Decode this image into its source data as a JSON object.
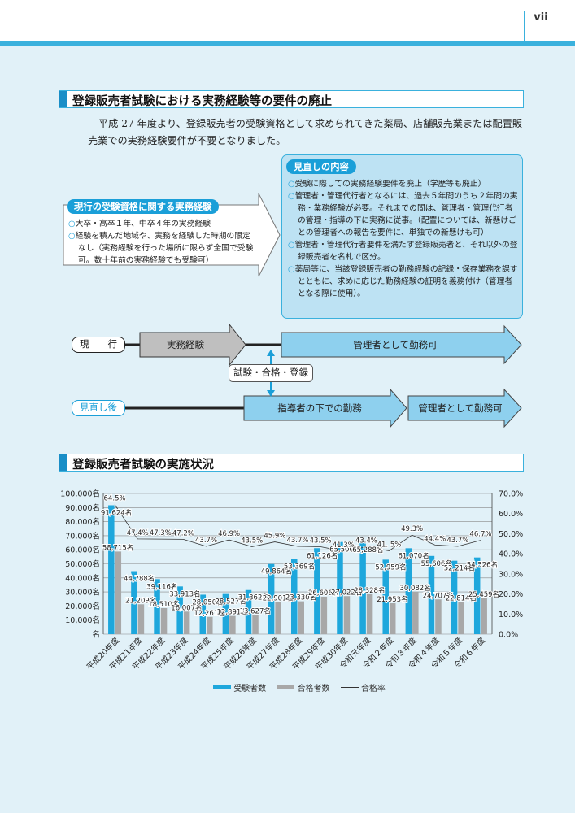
{
  "page_number": "vii",
  "section1": {
    "title": "登録販売者試験における実務経験等の要件の廃止",
    "paragraph": "平成 27 年度より、登録販売者の受験資格として求められてきた薬局、店舗販売業または配置販売業での実務経験要件が不要となりました。"
  },
  "current_box": {
    "title": "現行の受験資格に関する実務経験",
    "items": [
      "大卒・高卒１年、中卒４年の実務経験",
      "経験を積んだ地域や、実務を経験した時期の限定なし（実務経験を行った場所に限らず全国で受験可。数十年前の実務経験でも受験可）"
    ]
  },
  "review_box": {
    "title": "見直しの内容",
    "items": [
      "受験に際しての実務経験要件を廃止（学歴等も廃止）",
      "管理者・管理代行者となるには、過去５年間のうち２年間の実務・業務経験が必要。それまでの間は、管理者・管理代行者の管理・指導の下に実務に従事。（配置については、新懸けごとの管理者への報告を要件に、単独での新懸けも可）",
      "管理者・管理代行者要件を満たす登録販売者と、それ以外の登録販売者を名札で区分。",
      "薬局等に、当該登録販売者の勤務経験の記録・保存業務を課すとともに、求めに応じた勤務経験の証明を義務付け（管理者となる際に使用）。"
    ]
  },
  "flow": {
    "current_label": "現　　行",
    "after_label": "見直し後",
    "work_experience": "実務経験",
    "manager_ok": "管理者として勤務可",
    "exam": "試験・合格・登録",
    "under_supervisor": "指導者の下での勤務",
    "manager_ok2": "管理者として勤務可"
  },
  "colors": {
    "accent": "#1a9fd8",
    "light_blue": "#bde2f3",
    "arrow_blue": "#8ed0ee",
    "bar_applicants": "#1ea7dc",
    "bar_passers": "#a8a8a8",
    "page_bg": "#e1f1f8"
  },
  "section2": {
    "title": "登録販売者試験の実施状況"
  },
  "chart_data": {
    "type": "bar",
    "categories": [
      "平成20年度",
      "平成21年度",
      "平成22年度",
      "平成23年度",
      "平成24年度",
      "平成25年度",
      "平成26年度",
      "平成27年度",
      "平成28年度",
      "平成29年度",
      "平成30年度",
      "令和元年度",
      "令和２年度",
      "令和３年度",
      "令和４年度",
      "令和５年度",
      "令和６年度"
    ],
    "series": [
      {
        "name": "受験者数",
        "kind": "bar",
        "axis": "left",
        "values": [
          91624,
          44788,
          39116,
          33913,
          28050,
          28527,
          31362,
          49864,
          53369,
          61126,
          65500,
          65288,
          52959,
          61070,
          55606,
          52214,
          54526
        ],
        "labels": [
          "91,624名",
          "44,788名",
          "39,116名",
          "33,913名",
          "28,050名",
          "28,527名",
          "31,362名",
          "49,864名",
          "53,369名",
          "61,126名",
          "65,500名",
          "65,288名",
          "52,959名",
          "61,070名",
          "55,606名",
          "52,214名",
          "54,526名"
        ]
      },
      {
        "name": "合格者数",
        "kind": "bar",
        "axis": "left",
        "values": [
          58715,
          21209,
          18510,
          16007,
          12261,
          12891,
          13627,
          22901,
          23330,
          26606,
          27022,
          28328,
          21953,
          30082,
          24707,
          22814,
          25459
        ],
        "labels": [
          "58,715名",
          "21,209名",
          "18,510名",
          "16,007名",
          "12,261名",
          "12,891名",
          "13,627名",
          "22,901名",
          "23,330名",
          "26,606名",
          "27,022名",
          "28,328名",
          "21,953名",
          "30,082名",
          "24,707名",
          "22,814名",
          "25,459名"
        ]
      },
      {
        "name": "合格率",
        "kind": "line",
        "axis": "right",
        "values": [
          64.5,
          47.4,
          47.3,
          47.2,
          43.7,
          46.9,
          43.5,
          45.9,
          43.7,
          43.5,
          41.3,
          43.4,
          41.5,
          49.3,
          44.4,
          43.7,
          46.7
        ],
        "labels": [
          "64.5%",
          "47.4%",
          "47.3%",
          "47.2%",
          "43.7%",
          "46.9%",
          "43.5%",
          "45.9%",
          "43.7%",
          "43.5%",
          "41.3%",
          "43.4%",
          "41. 5%",
          "49.3%",
          "44.4%",
          "43.7%",
          "46.7%"
        ]
      }
    ],
    "ylim": [
      0,
      100000
    ],
    "y2lim": [
      0,
      70
    ],
    "yticks": [
      "名",
      "10,000名",
      "20,000名",
      "30,000名",
      "40,000名",
      "50,000名",
      "60,000名",
      "70,000名",
      "80,000名",
      "90,000名",
      "100,000名"
    ],
    "y2ticks": [
      "0.0%",
      "10.0%",
      "20.0%",
      "30.0%",
      "40.0%",
      "50.0%",
      "60.0%",
      "70.0%"
    ],
    "legend": [
      "受験者数",
      "合格者数",
      "合格率"
    ],
    "legend_position": "bottom",
    "grid": true
  }
}
